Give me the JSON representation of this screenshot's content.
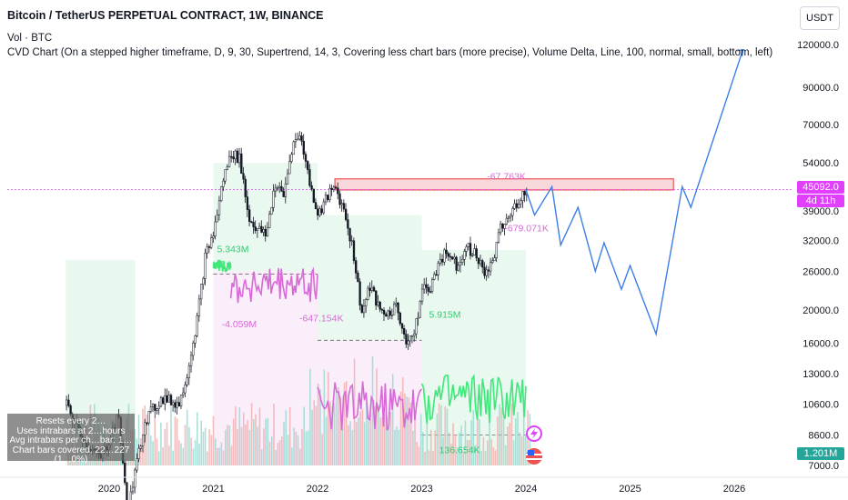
{
  "header": {
    "title": "Bitcoin / TetherUS PERPETUAL CONTRACT, 1W, BINANCE",
    "volume_label": "Vol · BTC",
    "indicator_line": "CVD Chart (On a stepped higher timeframe, D, 9, 30, Supertrend, 14, 3, Covering less chart bars (more precise), Volume Delta, Line, 100, normal, small, bottom, left)",
    "currency": "USDT"
  },
  "price_labels": {
    "last_price": "45092.0",
    "countdown": "4d 11h",
    "volume_value": "1.201M"
  },
  "info_box": {
    "lines": [
      "Resets every 2…",
      "Uses intrabars at 2…hours",
      "Avg intrabars per ch…bar: 1…",
      "Chart bars covered: 22…227 (1…0%)"
    ]
  },
  "colors": {
    "bull": "#26a69a",
    "bear": "#ef5350",
    "candle": "#131722",
    "cvd_up": "#3ee87a",
    "cvd_down": "#d66bd6",
    "projection": "#3d7ee8",
    "last_price_bg": "#e040fb",
    "countdown_bg": "#e040fb",
    "volume_value_bg": "#26a69a",
    "zone_border": "#ef5350",
    "zone_fill": "#f8d7da"
  },
  "chart_data": {
    "type": "candlestick",
    "y_scale": "log",
    "ylim": [
      7000,
      135000
    ],
    "y_ticks": [
      7000.0,
      8600.0,
      10600.0,
      13000.0,
      16000.0,
      20000.0,
      26000.0,
      32000.0,
      39000.0,
      54000.0,
      70000.0,
      90000.0,
      120000.0
    ],
    "x_ticks": [
      "2020",
      "2021",
      "2022",
      "2023",
      "2024",
      "2025",
      "2026"
    ],
    "price_path": [
      [
        "2019-08",
        10500
      ],
      [
        "2019-10",
        8300
      ],
      [
        "2019-12",
        7300
      ],
      [
        "2020-02",
        9800
      ],
      [
        "2020-03",
        5000
      ],
      [
        "2020-05",
        9500
      ],
      [
        "2020-07",
        11000
      ],
      [
        "2020-09",
        10600
      ],
      [
        "2020-10",
        13500
      ],
      [
        "2020-11",
        18500
      ],
      [
        "2020-12",
        28900
      ],
      [
        "2021-01",
        34000
      ],
      [
        "2021-02",
        48000
      ],
      [
        "2021-03",
        58000
      ],
      [
        "2021-04",
        55000
      ],
      [
        "2021-05",
        37000
      ],
      [
        "2021-06",
        34500
      ],
      [
        "2021-07",
        33000
      ],
      [
        "2021-08",
        47000
      ],
      [
        "2021-09",
        43000
      ],
      [
        "2021-10",
        61000
      ],
      [
        "2021-11",
        65000
      ],
      [
        "2021-12",
        47000
      ],
      [
        "2022-01",
        38000
      ],
      [
        "2022-02",
        43000
      ],
      [
        "2022-03",
        45500
      ],
      [
        "2022-04",
        39000
      ],
      [
        "2022-05",
        30000
      ],
      [
        "2022-06",
        19500
      ],
      [
        "2022-07",
        23500
      ],
      [
        "2022-08",
        20000
      ],
      [
        "2022-09",
        19500
      ],
      [
        "2022-10",
        20500
      ],
      [
        "2022-11",
        16500
      ],
      [
        "2022-12",
        16800
      ],
      [
        "2023-01",
        23000
      ],
      [
        "2023-02",
        23500
      ],
      [
        "2023-03",
        28500
      ],
      [
        "2023-04",
        29500
      ],
      [
        "2023-05",
        27000
      ],
      [
        "2023-06",
        30500
      ],
      [
        "2023-07",
        29500
      ],
      [
        "2023-08",
        26000
      ],
      [
        "2023-09",
        27000
      ],
      [
        "2023-10",
        34500
      ],
      [
        "2023-11",
        37500
      ],
      [
        "2023-12",
        42000
      ],
      [
        "2024-01",
        45092
      ]
    ],
    "projection_path": [
      [
        "2024-01",
        45092
      ],
      [
        "2024-02",
        38000
      ],
      [
        "2024-04",
        46000
      ],
      [
        "2024-05",
        31000
      ],
      [
        "2024-07",
        40000
      ],
      [
        "2024-09",
        26000
      ],
      [
        "2024-10",
        31500
      ],
      [
        "2024-12",
        23000
      ],
      [
        "2025-01",
        27000
      ],
      [
        "2025-04",
        17000
      ],
      [
        "2025-07",
        46000
      ],
      [
        "2025-08",
        40000
      ],
      [
        "2026-02",
        116000
      ]
    ],
    "resistance_zone": {
      "from": "2022-03",
      "to": "2025-06",
      "low": 45000,
      "high": 48500
    },
    "cvd_segments": [
      {
        "label": "5.343M",
        "color": "up"
      },
      {
        "label": "-4.059M",
        "color": "down"
      },
      {
        "label": "-647.154K",
        "color": "down"
      },
      {
        "label": "5.915M",
        "color": "up"
      },
      {
        "label": "-679.071K",
        "color": "down"
      },
      {
        "label": "-67.763K",
        "color": "down"
      },
      {
        "label": "136.654K",
        "color": "up"
      }
    ],
    "volume_note": "Vol · BTC histogram at bottom"
  }
}
